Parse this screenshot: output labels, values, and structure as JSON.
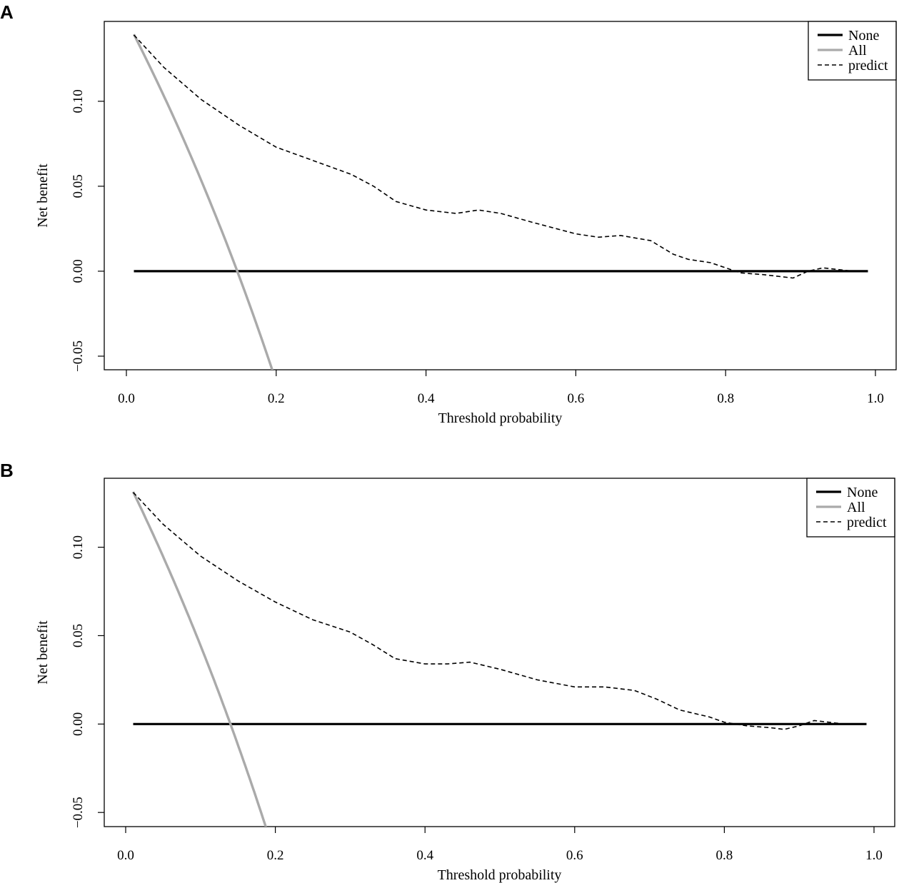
{
  "chart_data": [
    {
      "panel": "A",
      "type": "line",
      "title": "",
      "xlabel": "Threshold probability",
      "ylabel": "Net benefit",
      "xlim": [
        0,
        1
      ],
      "ylim": [
        -0.058,
        0.147
      ],
      "xticks": [
        0.0,
        0.2,
        0.4,
        0.6,
        0.8,
        1.0
      ],
      "xtick_labels": [
        "0.0",
        "0.2",
        "0.4",
        "0.6",
        "0.8",
        "1.0"
      ],
      "yticks": [
        -0.05,
        0.0,
        0.05,
        0.1
      ],
      "ytick_labels": [
        "−0.05",
        "0.00",
        "0.05",
        "0.10"
      ],
      "legend": {
        "position": "top-right",
        "entries": [
          "None",
          "All",
          "predict"
        ]
      },
      "prevalence": 0.148,
      "series": [
        {
          "name": "None",
          "color": "#000000",
          "style": "solid",
          "x": [
            0.01,
            0.99
          ],
          "y": [
            0,
            0
          ]
        },
        {
          "name": "All",
          "color": "#aaaaaa",
          "style": "solid",
          "formula": "all",
          "x_range": [
            0.01,
            0.199
          ]
        },
        {
          "name": "predict",
          "color": "#000000",
          "style": "dashed",
          "x": [
            0.01,
            0.05,
            0.1,
            0.15,
            0.2,
            0.25,
            0.3,
            0.33,
            0.36,
            0.4,
            0.44,
            0.47,
            0.5,
            0.54,
            0.6,
            0.63,
            0.66,
            0.7,
            0.73,
            0.75,
            0.78,
            0.8,
            0.82,
            0.85,
            0.87,
            0.89,
            0.91,
            0.93,
            0.95,
            0.97,
            0.99
          ],
          "y": [
            0.139,
            0.12,
            0.101,
            0.086,
            0.073,
            0.065,
            0.057,
            0.05,
            0.041,
            0.036,
            0.034,
            0.036,
            0.034,
            0.029,
            0.022,
            0.02,
            0.021,
            0.018,
            0.01,
            0.007,
            0.005,
            0.002,
            -0.001,
            -0.002,
            -0.003,
            -0.004,
            0.0,
            0.002,
            0.001,
            0.0,
            0.0
          ]
        }
      ]
    },
    {
      "panel": "B",
      "type": "line",
      "title": "",
      "xlabel": "Threshold probability",
      "ylabel": "Net benefit",
      "xlim": [
        0,
        1
      ],
      "ylim": [
        -0.058,
        0.139
      ],
      "xticks": [
        0.0,
        0.2,
        0.4,
        0.6,
        0.8,
        1.0
      ],
      "xtick_labels": [
        "0.0",
        "0.2",
        "0.4",
        "0.6",
        "0.8",
        "1.0"
      ],
      "yticks": [
        -0.05,
        0.0,
        0.05,
        0.1
      ],
      "ytick_labels": [
        "−0.05",
        "0.00",
        "0.05",
        "0.10"
      ],
      "legend": {
        "position": "top-right",
        "entries": [
          "None",
          "All",
          "predict"
        ]
      },
      "prevalence": 0.14,
      "series": [
        {
          "name": "None",
          "color": "#000000",
          "style": "solid",
          "x": [
            0.01,
            0.99
          ],
          "y": [
            0,
            0
          ]
        },
        {
          "name": "All",
          "color": "#aaaaaa",
          "style": "solid",
          "formula": "all",
          "x_range": [
            0.01,
            0.19
          ]
        },
        {
          "name": "predict",
          "color": "#000000",
          "style": "dashed",
          "x": [
            0.01,
            0.05,
            0.1,
            0.15,
            0.2,
            0.25,
            0.3,
            0.33,
            0.36,
            0.4,
            0.43,
            0.46,
            0.5,
            0.55,
            0.6,
            0.64,
            0.68,
            0.71,
            0.74,
            0.78,
            0.8,
            0.83,
            0.86,
            0.88,
            0.9,
            0.92,
            0.94,
            0.96,
            0.99
          ],
          "y": [
            0.131,
            0.113,
            0.095,
            0.081,
            0.069,
            0.059,
            0.052,
            0.045,
            0.037,
            0.034,
            0.034,
            0.035,
            0.031,
            0.025,
            0.021,
            0.021,
            0.019,
            0.014,
            0.008,
            0.004,
            0.001,
            -0.001,
            -0.002,
            -0.003,
            -0.001,
            0.002,
            0.001,
            0.0,
            0.0
          ]
        }
      ]
    }
  ]
}
